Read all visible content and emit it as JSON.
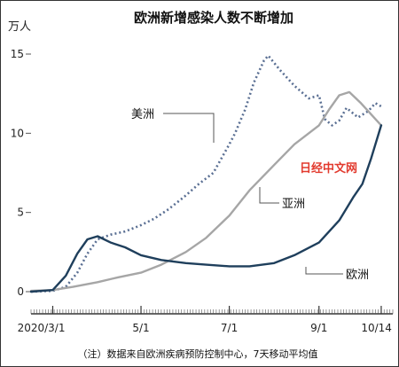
{
  "chart_data": {
    "type": "line",
    "title": "欧洲新增感染人数不断增加",
    "ylabel": "万人",
    "ylim": [
      0,
      15
    ],
    "yticks": [
      "0",
      "5",
      "10",
      "15"
    ],
    "xlim": [
      "2020-02-15",
      "2020-10-22"
    ],
    "xticks": [
      {
        "date": "2020-03-01",
        "label": "2020/3/1"
      },
      {
        "date": "2020-05-01",
        "label": "5/1"
      },
      {
        "date": "2020-07-01",
        "label": "7/1"
      },
      {
        "date": "2020-09-01",
        "label": "9/1"
      },
      {
        "date": "2020-10-14",
        "label": "10/14"
      }
    ],
    "grid": false,
    "series": [
      {
        "name": "美洲",
        "color": "#5a6f93",
        "style": "dotted",
        "points": [
          [
            "2020-02-15",
            0
          ],
          [
            "2020-03-01",
            0.05
          ],
          [
            "2020-03-10",
            0.3
          ],
          [
            "2020-03-18",
            1.2
          ],
          [
            "2020-03-25",
            2.4
          ],
          [
            "2020-04-01",
            3.3
          ],
          [
            "2020-04-10",
            3.6
          ],
          [
            "2020-04-20",
            3.8
          ],
          [
            "2020-05-01",
            4.2
          ],
          [
            "2020-05-10",
            4.6
          ],
          [
            "2020-05-20",
            5.2
          ],
          [
            "2020-05-31",
            6.0
          ],
          [
            "2020-06-10",
            6.8
          ],
          [
            "2020-06-20",
            7.5
          ],
          [
            "2020-07-01",
            9.3
          ],
          [
            "2020-07-05",
            10.0
          ],
          [
            "2020-07-12",
            11.5
          ],
          [
            "2020-07-18",
            13.2
          ],
          [
            "2020-07-25",
            14.6
          ],
          [
            "2020-07-28",
            14.9
          ],
          [
            "2020-08-05",
            14.0
          ],
          [
            "2020-08-15",
            13.0
          ],
          [
            "2020-08-25",
            12.2
          ],
          [
            "2020-09-01",
            12.4
          ],
          [
            "2020-09-05",
            10.9
          ],
          [
            "2020-09-10",
            10.5
          ],
          [
            "2020-09-15",
            10.8
          ],
          [
            "2020-09-20",
            11.6
          ],
          [
            "2020-09-28",
            11.0
          ],
          [
            "2020-10-05",
            11.4
          ],
          [
            "2020-10-10",
            11.9
          ],
          [
            "2020-10-14",
            11.7
          ]
        ]
      },
      {
        "name": "亚洲",
        "color": "#a6a6a6",
        "style": "solid",
        "points": [
          [
            "2020-02-15",
            0.05
          ],
          [
            "2020-03-01",
            0.1
          ],
          [
            "2020-03-15",
            0.3
          ],
          [
            "2020-04-01",
            0.6
          ],
          [
            "2020-04-15",
            0.9
          ],
          [
            "2020-05-01",
            1.2
          ],
          [
            "2020-05-15",
            1.7
          ],
          [
            "2020-06-01",
            2.5
          ],
          [
            "2020-06-15",
            3.4
          ],
          [
            "2020-07-01",
            4.8
          ],
          [
            "2020-07-15",
            6.4
          ],
          [
            "2020-08-01",
            8.0
          ],
          [
            "2020-08-15",
            9.3
          ],
          [
            "2020-09-01",
            10.5
          ],
          [
            "2020-09-08",
            11.5
          ],
          [
            "2020-09-15",
            12.4
          ],
          [
            "2020-09-22",
            12.6
          ],
          [
            "2020-09-30",
            11.9
          ],
          [
            "2020-10-07",
            11.2
          ],
          [
            "2020-10-14",
            10.5
          ]
        ]
      },
      {
        "name": "欧洲",
        "color": "#1f3f5c",
        "style": "solid",
        "points": [
          [
            "2020-02-15",
            0
          ],
          [
            "2020-03-01",
            0.1
          ],
          [
            "2020-03-10",
            1.0
          ],
          [
            "2020-03-18",
            2.4
          ],
          [
            "2020-03-25",
            3.3
          ],
          [
            "2020-04-01",
            3.5
          ],
          [
            "2020-04-10",
            3.1
          ],
          [
            "2020-04-20",
            2.8
          ],
          [
            "2020-05-01",
            2.3
          ],
          [
            "2020-05-15",
            2.0
          ],
          [
            "2020-06-01",
            1.8
          ],
          [
            "2020-06-15",
            1.7
          ],
          [
            "2020-07-01",
            1.6
          ],
          [
            "2020-07-15",
            1.6
          ],
          [
            "2020-08-01",
            1.8
          ],
          [
            "2020-08-15",
            2.3
          ],
          [
            "2020-09-01",
            3.1
          ],
          [
            "2020-09-15",
            4.5
          ],
          [
            "2020-09-25",
            6.0
          ],
          [
            "2020-10-01",
            6.8
          ],
          [
            "2020-10-07",
            8.4
          ],
          [
            "2020-10-14",
            10.5
          ]
        ]
      }
    ],
    "series_labels": [
      {
        "text": "美洲",
        "series": 0
      },
      {
        "text": "亚洲",
        "series": 1
      },
      {
        "text": "欧洲",
        "series": 2
      }
    ],
    "watermark": "日经中文网",
    "note": "（注）数据来自欧洲疾病预防控制中心，7天移动平均值"
  }
}
